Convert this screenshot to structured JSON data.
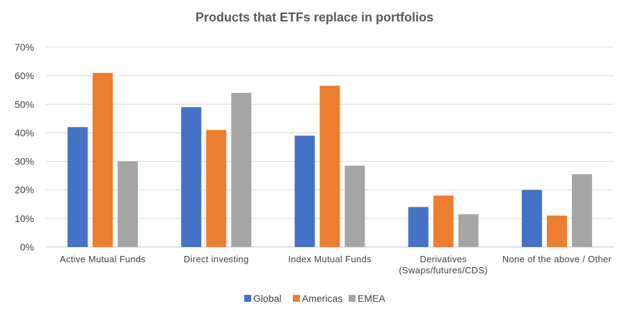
{
  "chart_data": {
    "type": "bar",
    "title": "Products that ETFs replace in portfolios",
    "xlabel": "",
    "ylabel": "",
    "categories": [
      [
        "Active Mutual Funds"
      ],
      [
        "Direct investing"
      ],
      [
        "Index Mutual Funds"
      ],
      [
        "Derivatives",
        "(Swaps/futures/CDS)"
      ],
      [
        "None of the above / Other"
      ]
    ],
    "series": [
      {
        "name": "Global",
        "color": "#4472c4",
        "values": [
          0.42,
          0.49,
          0.39,
          0.14,
          0.2
        ]
      },
      {
        "name": "Americas",
        "color": "#ed7d31",
        "values": [
          0.61,
          0.41,
          0.565,
          0.18,
          0.11
        ]
      },
      {
        "name": "EMEA",
        "color": "#a5a5a5",
        "values": [
          0.3,
          0.54,
          0.285,
          0.115,
          0.255
        ]
      }
    ],
    "yticks": [
      "0%",
      "10%",
      "20%",
      "30%",
      "40%",
      "50%",
      "60%",
      "70%"
    ],
    "ylim": [
      0,
      0.7
    ],
    "grid": true,
    "legend": "bottom-center"
  }
}
